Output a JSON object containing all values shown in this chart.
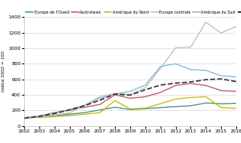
{
  "years": [
    2002,
    2003,
    2004,
    2005,
    2006,
    2007,
    2008,
    2009,
    2010,
    2011,
    2012,
    2013,
    2014,
    2015,
    2016
  ],
  "series": {
    "Europe de l'Ouest": [
      100,
      110,
      130,
      150,
      170,
      205,
      240,
      210,
      220,
      235,
      248,
      258,
      295,
      285,
      290
    ],
    "Australasie": [
      100,
      125,
      170,
      205,
      240,
      275,
      400,
      355,
      375,
      430,
      520,
      545,
      520,
      455,
      445
    ],
    "Amérique du Nord": [
      100,
      108,
      118,
      132,
      148,
      172,
      325,
      218,
      228,
      285,
      345,
      365,
      375,
      235,
      225
    ],
    "Europe centrale": [
      100,
      112,
      138,
      168,
      265,
      375,
      415,
      405,
      490,
      740,
      1005,
      1015,
      1335,
      1195,
      1280
    ],
    "Amérique du Sud": [
      100,
      128,
      162,
      212,
      265,
      355,
      410,
      445,
      525,
      765,
      800,
      725,
      715,
      645,
      630
    ],
    "Moyenne mondiale": [
      100,
      122,
      158,
      205,
      260,
      330,
      410,
      395,
      465,
      525,
      550,
      565,
      595,
      605,
      570
    ]
  },
  "colors": {
    "Europe de l'Ouest": "#3d8f82",
    "Australasie": "#c0506a",
    "Amérique du Nord": "#c8b800",
    "Europe centrale": "#c0bcb8",
    "Amérique du Sud": "#82b8d8",
    "Moyenne mondiale": "#333333"
  },
  "linestyles": {
    "Europe de l'Ouest": "-",
    "Australasie": "-",
    "Amérique du Nord": "-",
    "Europe centrale": "-",
    "Amérique du Sud": "-",
    "Moyenne mondiale": "--"
  },
  "linewidths": {
    "Europe de l'Ouest": 0.9,
    "Australasie": 0.9,
    "Amérique du Nord": 0.9,
    "Europe centrale": 0.9,
    "Amérique du Sud": 0.9,
    "Moyenne mondiale": 1.2
  },
  "ylabel": "Indice 2002 = 100",
  "ylim": [
    0,
    1400
  ],
  "yticks": [
    0,
    200,
    400,
    600,
    800,
    1000,
    1200,
    1400
  ],
  "xtick_labels": [
    "2002",
    "2003",
    "2004",
    "2005",
    "2006",
    "2007",
    "2008",
    "2009",
    "2010",
    "2011",
    "2012",
    "2013",
    "2014",
    "2015",
    "2016"
  ],
  "background_color": "#ffffff",
  "grid_color": "#d0d0d0"
}
